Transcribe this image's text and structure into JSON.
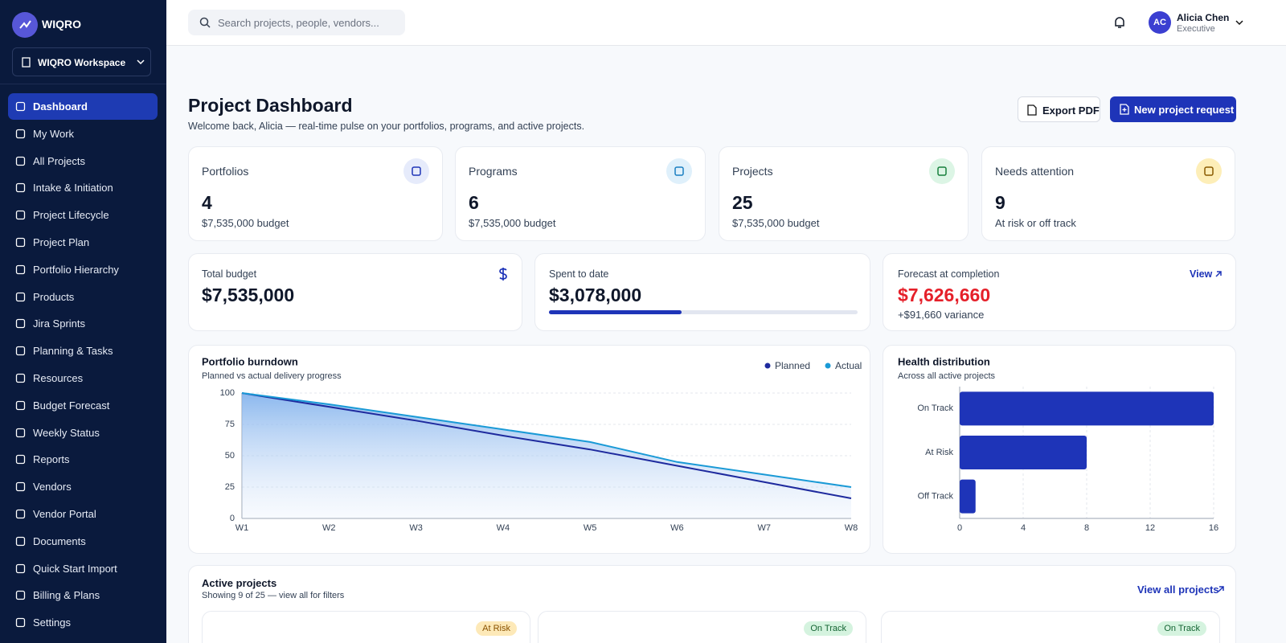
{
  "brand": {
    "name": "WIQRO",
    "workspace": "WIQRO Workspace"
  },
  "nav": [
    "Dashboard",
    "My Work",
    "All Projects",
    "Intake & Initiation",
    "Project Lifecycle",
    "Project Plan",
    "Portfolio Hierarchy",
    "Products",
    "Jira Sprints",
    "Planning & Tasks",
    "Resources",
    "Budget Forecast",
    "Weekly Status",
    "Reports",
    "Vendors",
    "Vendor Portal",
    "Documents",
    "Quick Start Import",
    "Billing & Plans",
    "Settings"
  ],
  "header": {
    "search_placeholder": "Search projects, people, vendors...",
    "user": {
      "initials": "AC",
      "name": "Alicia Chen",
      "role": "Executive"
    }
  },
  "page": {
    "title": "Project Dashboard",
    "subtitle": "Welcome back, Alicia — real-time pulse on your portfolios, programs, and active projects.",
    "actions": [
      "Export PDF",
      "New project request"
    ]
  },
  "summary_cards": [
    {
      "label": "Portfolios",
      "value": 4,
      "note": "$7,535,000 budget"
    },
    {
      "label": "Programs",
      "value": 6,
      "note": "$7,535,000 budget"
    },
    {
      "label": "Projects",
      "value": 25,
      "note": "$7,535,000 budget"
    },
    {
      "label": "Needs attention",
      "value": 9,
      "note": "At risk or off track"
    }
  ],
  "finance_cards": [
    {
      "label": "Total budget",
      "value": "$7,535,000"
    },
    {
      "label": "Spent to date",
      "value": "$3,078,000"
    },
    {
      "label": "Forecast at completion",
      "value": "$7,626,660",
      "note": "+$91,660 variance",
      "link": "View"
    }
  ],
  "chart_data": [
    {
      "type": "line",
      "title": "Portfolio burndown",
      "subtitle": "Planned vs actual delivery progress",
      "categories": [
        "W1",
        "W2",
        "W3",
        "W4",
        "W5",
        "W6",
        "W7",
        "W8"
      ],
      "series": [
        {
          "name": "Planned",
          "color": "#1e2a9e",
          "values": [
            100,
            89,
            78,
            66,
            55,
            42,
            29,
            16
          ]
        },
        {
          "name": "Actual",
          "color": "#1a9ad6",
          "values": [
            100,
            91,
            81,
            71,
            61,
            45,
            35,
            25
          ]
        }
      ],
      "ylim": [
        0,
        100
      ],
      "yticks": [
        0,
        25,
        50,
        75,
        100
      ],
      "grid": true,
      "area": true
    },
    {
      "type": "bar",
      "orientation": "horizontal",
      "title": "Health distribution",
      "subtitle": "Across all active projects",
      "categories": [
        "On Track",
        "At Risk",
        "Off Track"
      ],
      "values": [
        16,
        8,
        1
      ],
      "color": "#1e34b8",
      "xlim": [
        0,
        16
      ],
      "xticks": [
        0,
        4,
        8,
        12,
        16
      ],
      "grid": true
    }
  ],
  "active_projects": {
    "title": "Active projects",
    "subtitle": "Showing 9 of 25 — view all for filters",
    "link": "View all projects",
    "statuses": [
      "At Risk",
      "On Track",
      "On Track"
    ]
  }
}
